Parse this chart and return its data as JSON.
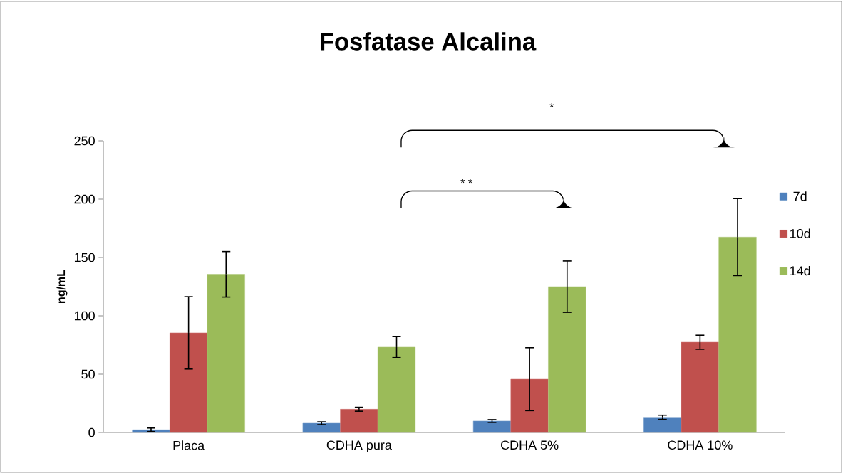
{
  "chart_data": {
    "type": "bar",
    "title": "Fosfatase Alcalina",
    "ylabel": "ng/mL",
    "categories": [
      "Placa",
      "CDHA pura",
      "CDHA 5%",
      "CDHA 10%"
    ],
    "series": [
      {
        "name": "7d",
        "color": "#4f81bd",
        "values": [
          2.3,
          7.9,
          9.8,
          13
        ],
        "errors": [
          1.5,
          1.2,
          1.2,
          1.8
        ]
      },
      {
        "name": "10d",
        "color": "#c0504d",
        "values": [
          85.4,
          19.9,
          45.7,
          77.4
        ],
        "errors": [
          31,
          1.7,
          27,
          6
        ]
      },
      {
        "name": "14d",
        "color": "#9bbb59",
        "values": [
          135.6,
          73.2,
          125,
          167.5
        ],
        "errors": [
          19.5,
          9,
          22,
          33
        ]
      }
    ],
    "ylim": [
      0,
      250
    ],
    "yticks": [
      0,
      50,
      100,
      150,
      200,
      250
    ],
    "annotations": [
      "* *",
      "*"
    ],
    "legend": "right"
  }
}
